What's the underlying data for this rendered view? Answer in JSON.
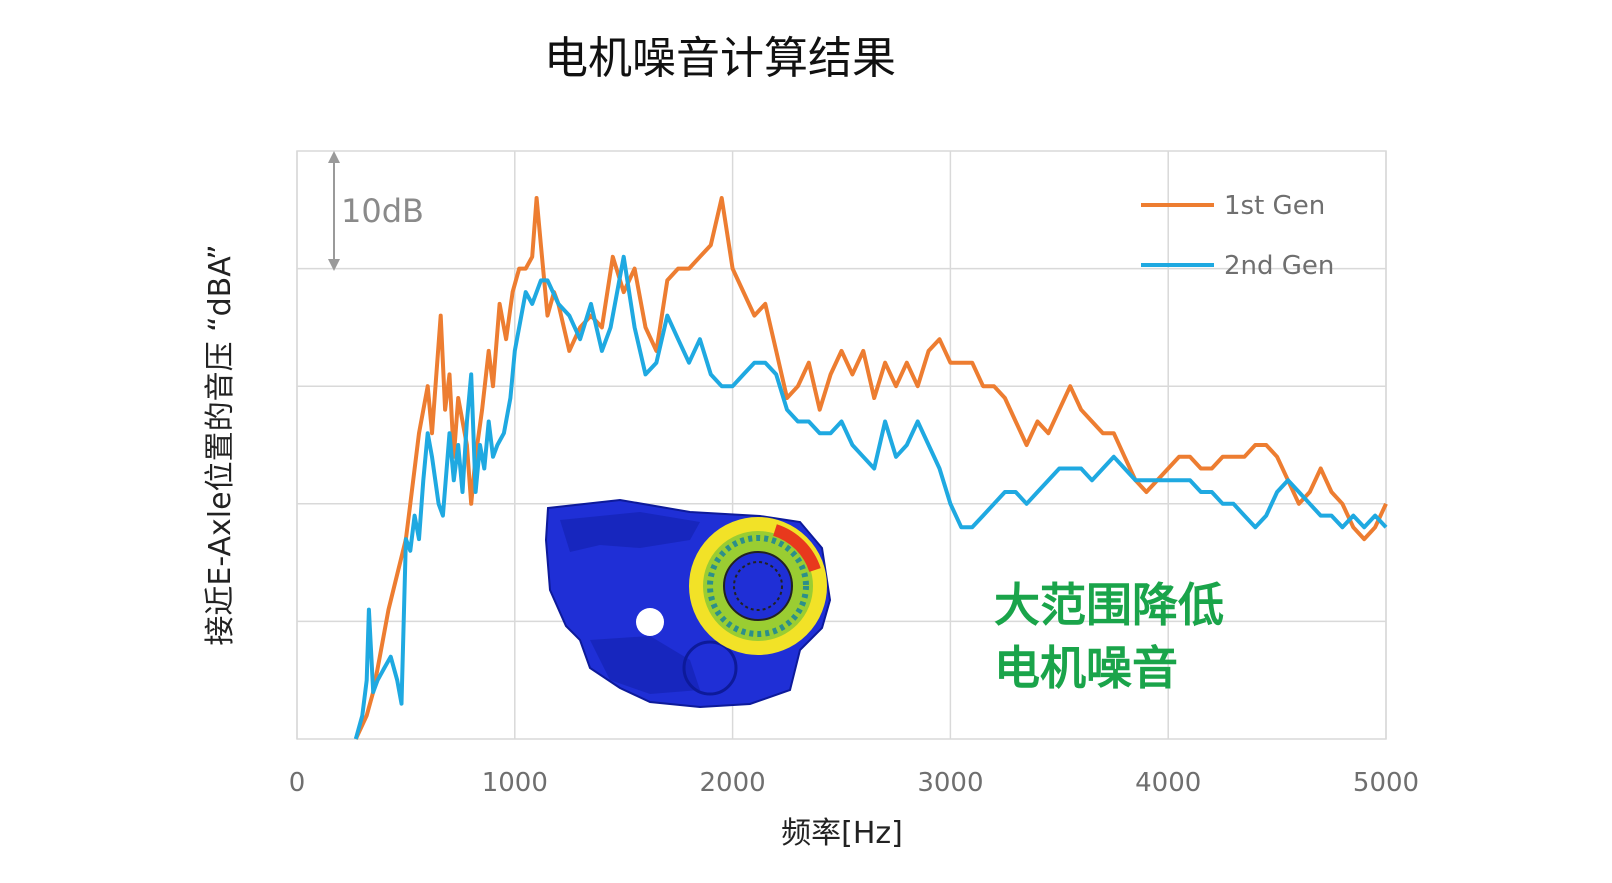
{
  "chart_data": {
    "type": "line",
    "title": "电机噪音计算结果",
    "xlabel": "频率[Hz]",
    "ylabel": "接近E-Axle位置的音压 “dBA”",
    "xlim": [
      0,
      5000
    ],
    "xticks": [
      "0",
      "1000",
      "2000",
      "3000",
      "4000",
      "5000"
    ],
    "ylim": [
      0,
      50
    ],
    "y_unit_note": "gridline spacing 10 dB, no y tick labels printed",
    "scale_annotation": "10dB",
    "grid": true,
    "legend_position": "top-right",
    "annotation": [
      "大范围降低",
      "电机噪音"
    ],
    "series": [
      {
        "name": "1st Gen",
        "color": "#ed7d31",
        "points": [
          [
            270,
            0
          ],
          [
            320,
            2
          ],
          [
            350,
            4
          ],
          [
            380,
            7
          ],
          [
            420,
            11
          ],
          [
            460,
            14
          ],
          [
            500,
            17
          ],
          [
            520,
            20
          ],
          [
            560,
            26
          ],
          [
            600,
            30
          ],
          [
            620,
            26
          ],
          [
            660,
            36
          ],
          [
            680,
            28
          ],
          [
            700,
            31
          ],
          [
            720,
            24
          ],
          [
            740,
            29
          ],
          [
            780,
            25
          ],
          [
            800,
            20
          ],
          [
            820,
            24
          ],
          [
            850,
            28
          ],
          [
            880,
            33
          ],
          [
            900,
            30
          ],
          [
            930,
            37
          ],
          [
            960,
            34
          ],
          [
            990,
            38
          ],
          [
            1020,
            40
          ],
          [
            1050,
            40
          ],
          [
            1080,
            41
          ],
          [
            1100,
            46
          ],
          [
            1120,
            42
          ],
          [
            1150,
            36
          ],
          [
            1180,
            38
          ],
          [
            1200,
            37
          ],
          [
            1250,
            33
          ],
          [
            1300,
            35
          ],
          [
            1350,
            36
          ],
          [
            1400,
            35
          ],
          [
            1450,
            41
          ],
          [
            1500,
            38
          ],
          [
            1550,
            40
          ],
          [
            1600,
            35
          ],
          [
            1650,
            33
          ],
          [
            1700,
            39
          ],
          [
            1750,
            40
          ],
          [
            1800,
            40
          ],
          [
            1850,
            41
          ],
          [
            1900,
            42
          ],
          [
            1950,
            46
          ],
          [
            2000,
            40
          ],
          [
            2050,
            38
          ],
          [
            2100,
            36
          ],
          [
            2150,
            37
          ],
          [
            2200,
            33
          ],
          [
            2250,
            29
          ],
          [
            2300,
            30
          ],
          [
            2350,
            32
          ],
          [
            2400,
            28
          ],
          [
            2450,
            31
          ],
          [
            2500,
            33
          ],
          [
            2550,
            31
          ],
          [
            2600,
            33
          ],
          [
            2650,
            29
          ],
          [
            2700,
            32
          ],
          [
            2750,
            30
          ],
          [
            2800,
            32
          ],
          [
            2850,
            30
          ],
          [
            2900,
            33
          ],
          [
            2950,
            34
          ],
          [
            3000,
            32
          ],
          [
            3050,
            32
          ],
          [
            3100,
            32
          ],
          [
            3150,
            30
          ],
          [
            3200,
            30
          ],
          [
            3250,
            29
          ],
          [
            3300,
            27
          ],
          [
            3350,
            25
          ],
          [
            3400,
            27
          ],
          [
            3450,
            26
          ],
          [
            3500,
            28
          ],
          [
            3550,
            30
          ],
          [
            3600,
            28
          ],
          [
            3650,
            27
          ],
          [
            3700,
            26
          ],
          [
            3750,
            26
          ],
          [
            3800,
            24
          ],
          [
            3850,
            22
          ],
          [
            3900,
            21
          ],
          [
            3950,
            22
          ],
          [
            4000,
            23
          ],
          [
            4050,
            24
          ],
          [
            4100,
            24
          ],
          [
            4150,
            23
          ],
          [
            4200,
            23
          ],
          [
            4250,
            24
          ],
          [
            4300,
            24
          ],
          [
            4350,
            24
          ],
          [
            4400,
            25
          ],
          [
            4450,
            25
          ],
          [
            4500,
            24
          ],
          [
            4550,
            22
          ],
          [
            4600,
            20
          ],
          [
            4650,
            21
          ],
          [
            4700,
            23
          ],
          [
            4750,
            21
          ],
          [
            4800,
            20
          ],
          [
            4850,
            18
          ],
          [
            4900,
            17
          ],
          [
            4950,
            18
          ],
          [
            5000,
            20
          ]
        ]
      },
      {
        "name": "2nd Gen",
        "color": "#1fa9e1",
        "points": [
          [
            270,
            0
          ],
          [
            300,
            2
          ],
          [
            320,
            5
          ],
          [
            330,
            11
          ],
          [
            350,
            4
          ],
          [
            370,
            5
          ],
          [
            400,
            6
          ],
          [
            430,
            7
          ],
          [
            460,
            5
          ],
          [
            480,
            3
          ],
          [
            500,
            17
          ],
          [
            520,
            16
          ],
          [
            540,
            19
          ],
          [
            560,
            17
          ],
          [
            580,
            22
          ],
          [
            600,
            26
          ],
          [
            620,
            24
          ],
          [
            650,
            20
          ],
          [
            670,
            19
          ],
          [
            700,
            26
          ],
          [
            720,
            22
          ],
          [
            740,
            25
          ],
          [
            760,
            21
          ],
          [
            780,
            27
          ],
          [
            800,
            31
          ],
          [
            820,
            21
          ],
          [
            840,
            25
          ],
          [
            860,
            23
          ],
          [
            880,
            27
          ],
          [
            900,
            24
          ],
          [
            920,
            25
          ],
          [
            950,
            26
          ],
          [
            980,
            29
          ],
          [
            1000,
            33
          ],
          [
            1050,
            38
          ],
          [
            1080,
            37
          ],
          [
            1120,
            39
          ],
          [
            1150,
            39
          ],
          [
            1200,
            37
          ],
          [
            1250,
            36
          ],
          [
            1300,
            34
          ],
          [
            1350,
            37
          ],
          [
            1400,
            33
          ],
          [
            1440,
            35
          ],
          [
            1500,
            41
          ],
          [
            1550,
            35
          ],
          [
            1600,
            31
          ],
          [
            1650,
            32
          ],
          [
            1700,
            36
          ],
          [
            1750,
            34
          ],
          [
            1800,
            32
          ],
          [
            1850,
            34
          ],
          [
            1900,
            31
          ],
          [
            1950,
            30
          ],
          [
            2000,
            30
          ],
          [
            2050,
            31
          ],
          [
            2100,
            32
          ],
          [
            2150,
            32
          ],
          [
            2200,
            31
          ],
          [
            2250,
            28
          ],
          [
            2300,
            27
          ],
          [
            2350,
            27
          ],
          [
            2400,
            26
          ],
          [
            2450,
            26
          ],
          [
            2500,
            27
          ],
          [
            2550,
            25
          ],
          [
            2600,
            24
          ],
          [
            2650,
            23
          ],
          [
            2700,
            27
          ],
          [
            2750,
            24
          ],
          [
            2800,
            25
          ],
          [
            2850,
            27
          ],
          [
            2900,
            25
          ],
          [
            2950,
            23
          ],
          [
            3000,
            20
          ],
          [
            3050,
            18
          ],
          [
            3100,
            18
          ],
          [
            3150,
            19
          ],
          [
            3200,
            20
          ],
          [
            3250,
            21
          ],
          [
            3300,
            21
          ],
          [
            3350,
            20
          ],
          [
            3400,
            21
          ],
          [
            3450,
            22
          ],
          [
            3500,
            23
          ],
          [
            3550,
            23
          ],
          [
            3600,
            23
          ],
          [
            3650,
            22
          ],
          [
            3700,
            23
          ],
          [
            3750,
            24
          ],
          [
            3800,
            23
          ],
          [
            3850,
            22
          ],
          [
            3900,
            22
          ],
          [
            3950,
            22
          ],
          [
            4000,
            22
          ],
          [
            4050,
            22
          ],
          [
            4100,
            22
          ],
          [
            4150,
            21
          ],
          [
            4200,
            21
          ],
          [
            4250,
            20
          ],
          [
            4300,
            20
          ],
          [
            4350,
            19
          ],
          [
            4400,
            18
          ],
          [
            4450,
            19
          ],
          [
            4500,
            21
          ],
          [
            4550,
            22
          ],
          [
            4600,
            21
          ],
          [
            4650,
            20
          ],
          [
            4700,
            19
          ],
          [
            4750,
            19
          ],
          [
            4800,
            18
          ],
          [
            4850,
            19
          ],
          [
            4900,
            18
          ],
          [
            4950,
            19
          ],
          [
            5000,
            18
          ]
        ]
      }
    ]
  }
}
